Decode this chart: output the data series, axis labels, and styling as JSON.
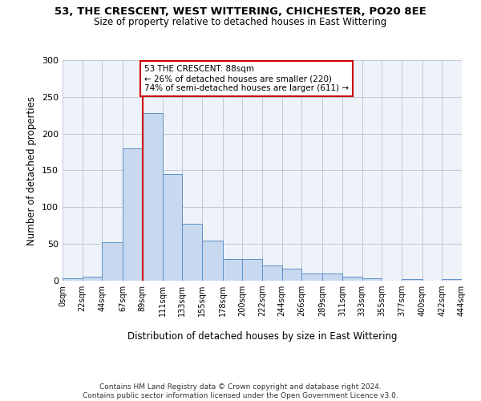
{
  "title1": "53, THE CRESCENT, WEST WITTERING, CHICHESTER, PO20 8EE",
  "title2": "Size of property relative to detached houses in East Wittering",
  "xlabel": "Distribution of detached houses by size in East Wittering",
  "ylabel": "Number of detached properties",
  "bar_color": "#c8d9ef",
  "bar_edge_color": "#5b8fc9",
  "grid_color": "#c0c8d8",
  "background_color": "#eef2f9",
  "property_line_x": 89,
  "property_line_color": "#cc0000",
  "annotation_text": "53 THE CRESCENT: 88sqm\n← 26% of detached houses are smaller (220)\n74% of semi-detached houses are larger (611) →",
  "annotation_box_color": "#ffffff",
  "annotation_box_edge": "#cc0000",
  "bin_edges": [
    0,
    22,
    44,
    67,
    89,
    111,
    133,
    155,
    178,
    200,
    222,
    244,
    266,
    289,
    311,
    333,
    355,
    377,
    400,
    422,
    444
  ],
  "counts": [
    3,
    6,
    52,
    180,
    228,
    145,
    77,
    55,
    30,
    30,
    21,
    16,
    10,
    10,
    6,
    3,
    0,
    2,
    0,
    2
  ],
  "xlim": [
    0,
    444
  ],
  "ylim": [
    0,
    300
  ],
  "yticks": [
    0,
    50,
    100,
    150,
    200,
    250,
    300
  ],
  "footer": "Contains HM Land Registry data © Crown copyright and database right 2024.\nContains public sector information licensed under the Open Government Licence v3.0.",
  "tick_labels": [
    "0sqm",
    "22sqm",
    "44sqm",
    "67sqm",
    "89sqm",
    "111sqm",
    "133sqm",
    "155sqm",
    "178sqm",
    "200sqm",
    "222sqm",
    "244sqm",
    "266sqm",
    "289sqm",
    "311sqm",
    "333sqm",
    "355sqm",
    "377sqm",
    "400sqm",
    "422sqm",
    "444sqm"
  ]
}
